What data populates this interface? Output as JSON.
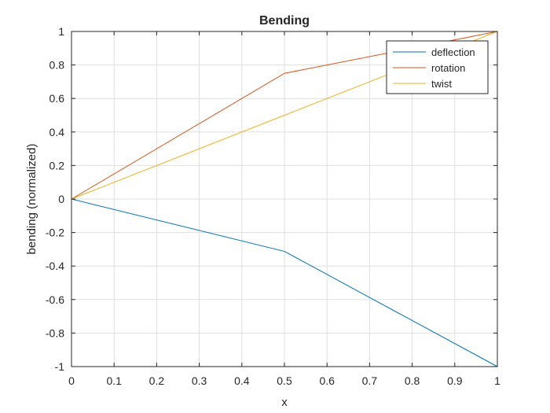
{
  "chart_data": {
    "type": "line",
    "title": "Bending",
    "xlabel": "x",
    "ylabel": "bending (normalized)",
    "xlim": [
      0,
      1
    ],
    "ylim": [
      -1,
      1
    ],
    "grid": true,
    "legend_position": "top-right",
    "x_ticks": [
      0,
      0.1,
      0.2,
      0.3,
      0.4,
      0.5,
      0.6,
      0.7,
      0.8,
      0.9,
      1
    ],
    "x_tick_labels": [
      "0",
      "0.1",
      "0.2",
      "0.3",
      "0.4",
      "0.5",
      "0.6",
      "0.7",
      "0.8",
      "0.9",
      "1"
    ],
    "y_ticks": [
      -1,
      -0.8,
      -0.6,
      -0.4,
      -0.2,
      0,
      0.2,
      0.4,
      0.6,
      0.8,
      1
    ],
    "y_tick_labels": [
      "-1",
      "-0.8",
      "-0.6",
      "-0.4",
      "-0.2",
      "0",
      "0.2",
      "0.4",
      "0.6",
      "0.8",
      "1"
    ],
    "series": [
      {
        "name": "deflection",
        "color": "#0072bd",
        "x": [
          0,
          0.5,
          1
        ],
        "values": [
          0,
          -0.3125,
          -1
        ]
      },
      {
        "name": "rotation",
        "color": "#d95319",
        "x": [
          0,
          0.5,
          1
        ],
        "values": [
          0,
          0.75,
          1
        ]
      },
      {
        "name": "twist",
        "color": "#edb120",
        "x": [
          0,
          0.5,
          1
        ],
        "values": [
          0,
          0.5,
          1
        ]
      }
    ]
  }
}
